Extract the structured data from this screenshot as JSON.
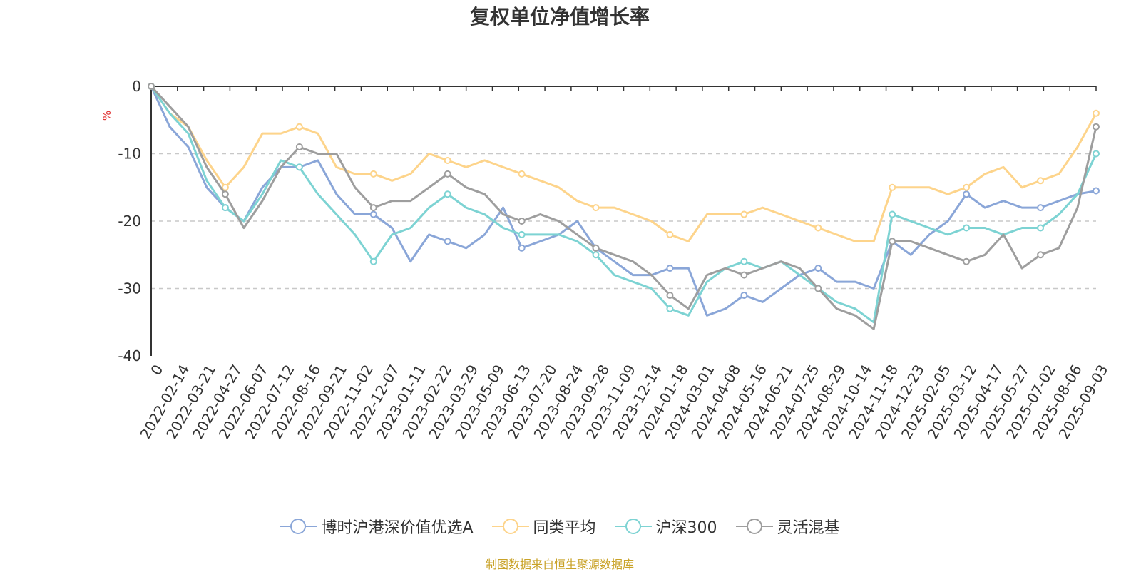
{
  "title": "复权单位净值增长率",
  "footer": "制图数据来自恒生聚源数据库",
  "chart_data": {
    "type": "line",
    "ylabel": "%",
    "ylim": [
      -40,
      0
    ],
    "yticks": [
      "0",
      "-10",
      "-20",
      "-30",
      "-40"
    ],
    "x_ticks": [
      "0",
      "2022-02-14",
      "2022-03-21",
      "2022-04-27",
      "2022-06-07",
      "2022-07-12",
      "2022-08-16",
      "2022-09-21",
      "2022-11-02",
      "2022-12-07",
      "2023-01-11",
      "2023-02-22",
      "2023-03-29",
      "2023-05-09",
      "2023-06-13",
      "2023-07-20",
      "2023-08-24",
      "2023-09-28",
      "2023-11-09",
      "2023-12-14",
      "2024-01-18",
      "2024-03-01",
      "2024-04-08",
      "2024-05-16",
      "2024-06-21",
      "2024-07-25",
      "2024-08-29",
      "2024-10-14",
      "2024-11-18",
      "2024-12-23",
      "2025-02-05",
      "2025-03-12",
      "2025-04-17",
      "2025-05-27",
      "2025-07-02",
      "2025-08-06",
      "2025-09-03"
    ],
    "grid": true,
    "legend_position": "bottom",
    "series": [
      {
        "name": "博时沪港深价值优选A",
        "color": "#8aa6d8",
        "values": [
          0,
          -6,
          -9,
          -15,
          -18,
          -20,
          -15,
          -12,
          -12,
          -11,
          -16,
          -19,
          -19,
          -21,
          -26,
          -22,
          -23,
          -24,
          -22,
          -18,
          -24,
          -23,
          -22,
          -20,
          -24,
          -26,
          -28,
          -28,
          -27,
          -27,
          -34,
          -33,
          -31,
          -32,
          -30,
          -28,
          -27,
          -29,
          -29,
          -30,
          -23,
          -25,
          -22,
          -20,
          -16,
          -18,
          -17,
          -18,
          -18,
          -17,
          -16,
          -15.5
        ]
      },
      {
        "name": "同类平均",
        "color": "#fdd48b",
        "values": [
          0,
          -4,
          -6,
          -11,
          -15,
          -12,
          -7,
          -7,
          -6,
          -7,
          -12,
          -13,
          -13,
          -14,
          -13,
          -10,
          -11,
          -12,
          -11,
          -12,
          -13,
          -14,
          -15,
          -17,
          -18,
          -18,
          -19,
          -20,
          -22,
          -23,
          -19,
          -19,
          -19,
          -18,
          -19,
          -20,
          -21,
          -22,
          -23,
          -23,
          -15,
          -15,
          -15,
          -16,
          -15,
          -13,
          -12,
          -15,
          -14,
          -13,
          -9,
          -4
        ]
      },
      {
        "name": "沪深300",
        "color": "#7dd3d3",
        "values": [
          0,
          -4,
          -7,
          -14,
          -18,
          -20,
          -16,
          -11,
          -12,
          -16,
          -19,
          -22,
          -26,
          -22,
          -21,
          -18,
          -16,
          -18,
          -19,
          -21,
          -22,
          -22,
          -22,
          -23,
          -25,
          -28,
          -29,
          -30,
          -33,
          -34,
          -29,
          -27,
          -26,
          -27,
          -26,
          -28,
          -30,
          -32,
          -33,
          -35,
          -19,
          -20,
          -21,
          -22,
          -21,
          -21,
          -22,
          -21,
          -21,
          -19,
          -16,
          -10
        ]
      },
      {
        "name": "灵活混基",
        "color": "#9e9e9e",
        "values": [
          0,
          -3,
          -6,
          -12,
          -16,
          -21,
          -17,
          -12,
          -9,
          -10,
          -10,
          -15,
          -18,
          -17,
          -17,
          -15,
          -13,
          -15,
          -16,
          -19,
          -20,
          -19,
          -20,
          -22,
          -24,
          -25,
          -26,
          -28,
          -31,
          -33,
          -28,
          -27,
          -28,
          -27,
          -26,
          -27,
          -30,
          -33,
          -34,
          -36,
          -23,
          -23,
          -24,
          -25,
          -26,
          -25,
          -22,
          -27,
          -25,
          -24,
          -18,
          -6
        ]
      }
    ]
  }
}
